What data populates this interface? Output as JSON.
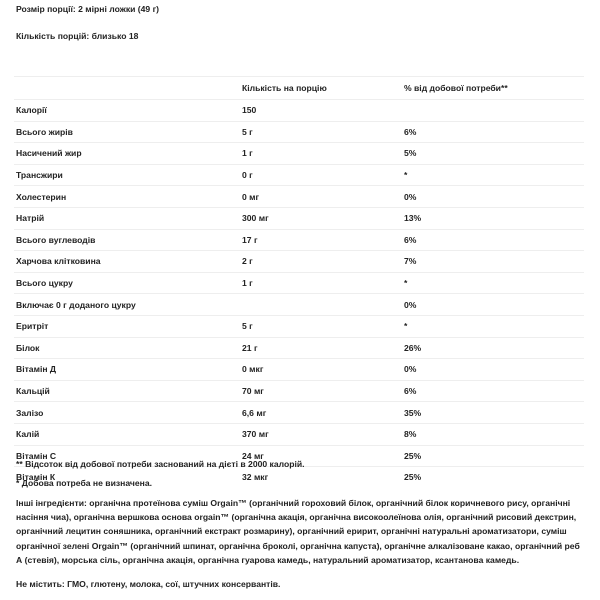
{
  "serving_size": "Розмір порції: 2 мірні ложки (49 г)",
  "servings": "Кількість порцій: близько 18",
  "table": {
    "headers": [
      "",
      "Кількість на порцію",
      "% від добової потреби**"
    ],
    "rows": [
      [
        "Калорії",
        "150",
        ""
      ],
      [
        "Всього жирів",
        "5 г",
        "6%"
      ],
      [
        "Насичений жир",
        "1 г",
        "5%"
      ],
      [
        "Трансжири",
        "0 г",
        "*"
      ],
      [
        "Холестерин",
        "0 мг",
        "0%"
      ],
      [
        "Натрій",
        "300 мг",
        "13%"
      ],
      [
        "Всього вуглеводів",
        "17 г",
        "6%"
      ],
      [
        "Харчова клітковина",
        "2 г",
        "7%"
      ],
      [
        "Всього цукру",
        "1 г",
        "*"
      ],
      [
        "Включає 0 г доданого цукру",
        "",
        "0%"
      ],
      [
        "Еритріт",
        "5 г",
        "*"
      ],
      [
        "Білок",
        "21 г",
        "26%"
      ],
      [
        "Вітамін Д",
        "0 мкг",
        "0%"
      ],
      [
        "Кальцій",
        "70 мг",
        "6%"
      ],
      [
        "Залізо",
        "6,6 мг",
        "35%"
      ],
      [
        "Калій",
        "370 мг",
        "8%"
      ],
      [
        "Вітамін С",
        "24 мг",
        "25%"
      ],
      [
        "Вітамін К",
        "32 мкг",
        "25%"
      ]
    ]
  },
  "footnote1": "** Відсоток від добової потреби заснований на дієті в 2000 калорій.",
  "footnote2": "* Добова потреба не визначена.",
  "ingredients": "Інші інгредієнти: органічна протеїнова суміш Orgain™ (органічний гороховий білок, органічний білок коричневого рису, органічні насіння чиа), органічна вершкова основа orgain™ (органічна акація, органічна високоолеїнова олія, органічний рисовий декстрин, органічний лецитин соняшника, органічний екстракт розмарину), органічний еририт, органічні натуральні ароматизатори, суміш органічної зелені Orgain™ (органічний шпинат, органічна броколі, органічна капуста), органічне алкалізоване какао, органічний реб А (стевія), морська сіль, органічна акація, органічна гуарова камедь, натуральний ароматизатор, ксантанова камедь.",
  "free_from": "Не містить: ГМО, глютену, молока, сої,  штучних консервантів."
}
